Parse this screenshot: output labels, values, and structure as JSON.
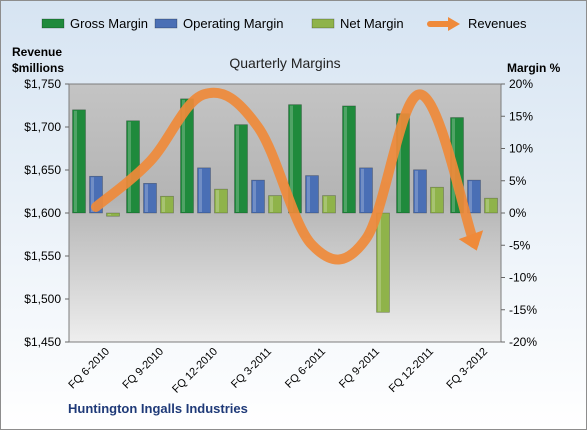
{
  "chart_data": {
    "type": "bar",
    "title": "Quarterly Margins",
    "footer": "Huntington Ingalls Industries",
    "left_axis": {
      "label_line1": "Revenue",
      "label_line2": "$millions",
      "ylim": [
        1450,
        1750
      ],
      "ticks": [
        "$1,450",
        "$1,500",
        "$1,550",
        "$1,600",
        "$1,650",
        "$1,700",
        "$1,750"
      ]
    },
    "right_axis": {
      "label": "Margin %",
      "ylim": [
        -20,
        20
      ],
      "ticks": [
        "-20%",
        "-15%",
        "-10%",
        "-5%",
        "0%",
        "5%",
        "10%",
        "15%",
        "20%"
      ]
    },
    "categories": [
      "FQ 6-2010",
      "FQ 9-2010",
      "FQ 12-2010",
      "FQ 3-2011",
      "FQ 6-2011",
      "FQ 9-2011",
      "FQ 12-2011",
      "FQ 3-2012"
    ],
    "series": [
      {
        "name": "Gross Margin",
        "kind": "bar",
        "axis": "right",
        "color": "#1f8a3c",
        "values": [
          16,
          14.3,
          17.7,
          13.7,
          16.8,
          16.6,
          15.4,
          14.8
        ]
      },
      {
        "name": "Operating Margin",
        "kind": "bar",
        "axis": "right",
        "color": "#4a6fb5",
        "values": [
          5.7,
          4.6,
          7.0,
          5.1,
          5.8,
          7.0,
          6.7,
          5.1
        ]
      },
      {
        "name": "Net Margin",
        "kind": "bar",
        "axis": "right",
        "color": "#8fb34a",
        "values": [
          -0.5,
          2.6,
          3.7,
          2.7,
          2.7,
          -15.4,
          4.0,
          2.3
        ]
      },
      {
        "name": "Revenues",
        "kind": "line",
        "axis": "left",
        "color": "#ef8a3a",
        "values": [
          1607,
          1660,
          1738,
          1700,
          1563,
          1570,
          1738,
          1565
        ]
      }
    ],
    "legend_position": "top",
    "grid": false
  }
}
